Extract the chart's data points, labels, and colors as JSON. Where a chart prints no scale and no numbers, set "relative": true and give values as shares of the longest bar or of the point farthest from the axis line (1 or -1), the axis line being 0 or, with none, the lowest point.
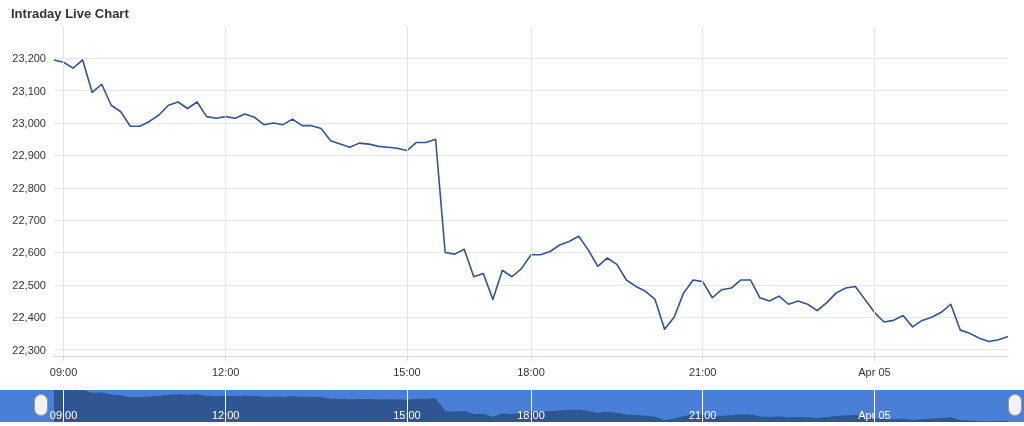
{
  "chart_data": [
    {
      "type": "line",
      "title": "Intraday Live Chart",
      "color": "#2f5596",
      "marker": "none",
      "grid": true,
      "categories": [
        null,
        "09:00",
        null,
        null,
        null,
        null,
        null,
        null,
        null,
        null,
        null,
        null,
        null,
        null,
        null,
        null,
        null,
        null,
        "12:00",
        null,
        null,
        null,
        null,
        null,
        null,
        null,
        null,
        null,
        null,
        null,
        null,
        null,
        null,
        null,
        null,
        null,
        null,
        "15:00",
        null,
        null,
        null,
        null,
        null,
        null,
        null,
        null,
        null,
        null,
        null,
        null,
        "18:00",
        null,
        null,
        null,
        null,
        null,
        null,
        null,
        null,
        null,
        null,
        null,
        null,
        null,
        null,
        null,
        null,
        null,
        "21:00",
        null,
        null,
        null,
        null,
        null,
        null,
        null,
        null,
        null,
        null,
        null,
        null,
        null,
        null,
        null,
        null,
        null,
        "Apr 05",
        null,
        null,
        null,
        null,
        null,
        null,
        null,
        null,
        null,
        null,
        null,
        null,
        null,
        null
      ],
      "values": [
        23195,
        23188,
        23170,
        23195,
        23095,
        23120,
        23055,
        23035,
        22990,
        22990,
        23005,
        23025,
        23055,
        23065,
        23045,
        23065,
        23020,
        23015,
        23020,
        23015,
        23028,
        23018,
        22995,
        23000,
        22995,
        23012,
        22992,
        22992,
        22983,
        22945,
        22935,
        22925,
        22938,
        22935,
        22928,
        22925,
        22922,
        22915,
        22940,
        22940,
        22950,
        22600,
        22595,
        22610,
        22525,
        22535,
        22455,
        22545,
        22525,
        22550,
        22593,
        22593,
        22603,
        22623,
        22634,
        22650,
        22608,
        22557,
        22583,
        22563,
        22515,
        22495,
        22480,
        22455,
        22363,
        22400,
        22475,
        22515,
        22510,
        22460,
        22485,
        22490,
        22515,
        22515,
        22460,
        22450,
        22465,
        22440,
        22450,
        22440,
        22420,
        22445,
        22475,
        22490,
        22495,
        22455,
        22415,
        22385,
        22390,
        22405,
        22370,
        22390,
        22400,
        22415,
        22440,
        22360,
        22350,
        22335,
        22325,
        22330,
        22340
      ],
      "ylim": [
        22280,
        23300
      ],
      "yticks": [
        {
          "value": 22300,
          "label": "22,300"
        },
        {
          "value": 22400,
          "label": "22,400"
        },
        {
          "value": 22500,
          "label": "22,500"
        },
        {
          "value": 22600,
          "label": "22,600"
        },
        {
          "value": 22700,
          "label": "22,700"
        },
        {
          "value": 22800,
          "label": "22,800"
        },
        {
          "value": 22900,
          "label": "22,900"
        },
        {
          "value": 23000,
          "label": "23,000"
        },
        {
          "value": 23100,
          "label": "23,100"
        },
        {
          "value": 23200,
          "label": "23,200"
        }
      ]
    },
    {
      "type": "area",
      "relative": true,
      "color": "#2f5593",
      "grid": "x",
      "tick_labels": "x",
      "categories": [
        null,
        "09:00",
        null,
        null,
        null,
        null,
        null,
        null,
        null,
        null,
        null,
        null,
        null,
        null,
        null,
        null,
        null,
        null,
        "12:00",
        null,
        null,
        null,
        null,
        null,
        null,
        null,
        null,
        null,
        null,
        null,
        null,
        null,
        null,
        null,
        null,
        null,
        null,
        "15:00",
        null,
        null,
        null,
        null,
        null,
        null,
        null,
        null,
        null,
        null,
        null,
        null,
        "18:00",
        null,
        null,
        null,
        null,
        null,
        null,
        null,
        null,
        null,
        null,
        null,
        null,
        null,
        null,
        null,
        null,
        null,
        "21:00",
        null,
        null,
        null,
        null,
        null,
        null,
        null,
        null,
        null,
        null,
        null,
        null,
        null,
        null,
        null,
        null,
        null,
        "Apr 05",
        null,
        null,
        null,
        null,
        null,
        null,
        null,
        null,
        null,
        null,
        null,
        null,
        null,
        null
      ],
      "values": [
        1.0,
        0.99,
        0.97,
        1.0,
        0.89,
        0.91,
        0.84,
        0.82,
        0.76,
        0.76,
        0.78,
        0.8,
        0.84,
        0.85,
        0.83,
        0.85,
        0.8,
        0.79,
        0.8,
        0.79,
        0.81,
        0.8,
        0.77,
        0.78,
        0.77,
        0.79,
        0.77,
        0.77,
        0.76,
        0.71,
        0.7,
        0.69,
        0.7,
        0.7,
        0.69,
        0.69,
        0.69,
        0.68,
        0.71,
        0.71,
        0.72,
        0.32,
        0.31,
        0.33,
        0.23,
        0.24,
        0.15,
        0.25,
        0.23,
        0.26,
        0.31,
        0.31,
        0.32,
        0.34,
        0.36,
        0.37,
        0.33,
        0.27,
        0.3,
        0.27,
        0.22,
        0.2,
        0.18,
        0.15,
        0.04,
        0.09,
        0.17,
        0.22,
        0.21,
        0.16,
        0.18,
        0.19,
        0.22,
        0.22,
        0.16,
        0.14,
        0.16,
        0.13,
        0.14,
        0.13,
        0.11,
        0.14,
        0.17,
        0.19,
        0.2,
        0.15,
        0.1,
        0.07,
        0.07,
        0.09,
        0.05,
        0.07,
        0.09,
        0.1,
        0.13,
        0.04,
        0.03,
        0.01,
        0.0,
        0.01,
        0.02
      ]
    }
  ]
}
